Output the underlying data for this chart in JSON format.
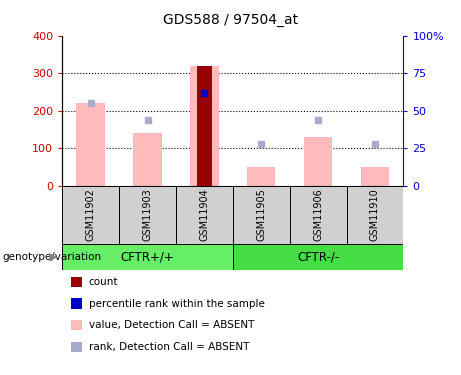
{
  "title": "GDS588 / 97504_at",
  "samples": [
    "GSM11902",
    "GSM11903",
    "GSM11904",
    "GSM11905",
    "GSM11906",
    "GSM11910"
  ],
  "pink_values": [
    220,
    140,
    320,
    50,
    130,
    50
  ],
  "blue_rank_values": [
    220,
    175,
    248,
    112,
    175,
    112
  ],
  "red_count_index": 2,
  "red_count_value": 320,
  "blue_percentile_index": 2,
  "blue_percentile_value": 248,
  "ylim_left": [
    0,
    400
  ],
  "ylim_right": [
    0,
    100
  ],
  "yticks_left": [
    0,
    100,
    200,
    300,
    400
  ],
  "yticks_right": [
    0,
    25,
    50,
    75,
    100
  ],
  "left_tick_color": "#cc0000",
  "right_tick_color": "#0000cc",
  "pink_color": "#ffbbbb",
  "blue_rank_color": "#aaaacc",
  "red_color": "#990000",
  "blue_percentile_color": "#0000cc",
  "group1_color": "#66ee66",
  "group2_color": "#44dd44",
  "gray_box_color": "#d0d0d0",
  "legend_items": [
    {
      "label": "count",
      "color": "#990000"
    },
    {
      "label": "percentile rank within the sample",
      "color": "#0000cc"
    },
    {
      "label": "value, Detection Call = ABSENT",
      "color": "#ffbbbb"
    },
    {
      "label": "rank, Detection Call = ABSENT",
      "color": "#aaaacc"
    }
  ]
}
